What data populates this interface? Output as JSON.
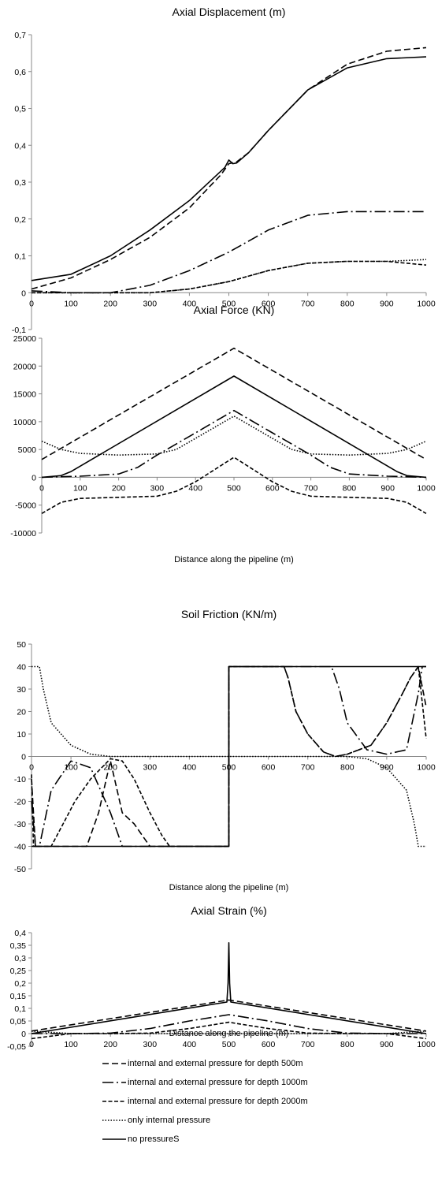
{
  "series_styles": [
    {
      "key": "d500",
      "label": "internal and external pressure for depth 500m",
      "dash": "8,4",
      "width": 1.6
    },
    {
      "key": "d1000",
      "label": "internal and external pressure for depth 1000m",
      "dash": "14,4,2,4",
      "width": 1.6
    },
    {
      "key": "d2000",
      "label": "internal and external pressure for depth 2000m",
      "dash": "5,2.5",
      "width": 1.6
    },
    {
      "key": "internal",
      "label": "only internal  pressure",
      "dash": "1.5,2",
      "width": 1.6
    },
    {
      "key": "none",
      "label": "no pressureS",
      "dash": "",
      "width": 1.6
    }
  ],
  "chart_data": [
    {
      "type": "line",
      "title": "Axial Displacement (m)",
      "xlabel": "",
      "ylabel": "",
      "xlim": [
        0,
        1000
      ],
      "ylim": [
        -0.1,
        0.7
      ],
      "yticks": [
        -0.1,
        0,
        0.1,
        0.2,
        0.3,
        0.4,
        0.5,
        0.6,
        0.7
      ],
      "ytick_labels": [
        "-0,1",
        "0",
        "0,1",
        "0,2",
        "0,3",
        "0,4",
        "0,5",
        "0,6",
        "0,7"
      ],
      "xticks": [
        0,
        100,
        200,
        300,
        400,
        500,
        600,
        700,
        800,
        900,
        1000
      ],
      "xtick_labels": [
        "0",
        "100",
        "200",
        "300",
        "400",
        "500",
        "600",
        "700",
        "800",
        "900",
        "1000"
      ],
      "grid": false,
      "series": [
        {
          "style": "d500",
          "x": [
            0,
            100,
            200,
            300,
            400,
            480,
            500,
            520,
            550,
            600,
            700,
            800,
            900,
            1000
          ],
          "y": [
            0.01,
            0.04,
            0.09,
            0.15,
            0.23,
            0.32,
            0.35,
            0.355,
            0.38,
            0.44,
            0.55,
            0.62,
            0.655,
            0.665
          ]
        },
        {
          "style": "d1000",
          "x": [
            0,
            100,
            200,
            300,
            400,
            500,
            550,
            600,
            700,
            800,
            900,
            1000
          ],
          "y": [
            0.005,
            0.0,
            0.0,
            0.02,
            0.06,
            0.11,
            0.14,
            0.17,
            0.21,
            0.22,
            0.22,
            0.22
          ]
        },
        {
          "style": "d2000",
          "x": [
            0,
            100,
            200,
            300,
            400,
            500,
            600,
            700,
            800,
            900,
            1000
          ],
          "y": [
            0.0,
            0.0,
            0.0,
            0.0,
            0.01,
            0.03,
            0.06,
            0.08,
            0.085,
            0.085,
            0.075
          ]
        },
        {
          "style": "internal",
          "x": [
            0,
            100,
            200,
            300,
            400,
            500,
            600,
            700,
            800,
            900,
            1000
          ],
          "y": [
            0.0,
            0.0,
            0.0,
            0.0,
            0.01,
            0.03,
            0.06,
            0.08,
            0.085,
            0.085,
            0.09
          ]
        },
        {
          "style": "none",
          "x": [
            0,
            100,
            200,
            300,
            400,
            490,
            500,
            510,
            520,
            550,
            600,
            700,
            800,
            900,
            1000
          ],
          "y": [
            0.033,
            0.05,
            0.1,
            0.17,
            0.25,
            0.34,
            0.36,
            0.35,
            0.352,
            0.38,
            0.44,
            0.55,
            0.61,
            0.635,
            0.64
          ]
        }
      ]
    },
    {
      "type": "line",
      "title": "Axial Force (KN)",
      "xlabel": "Distance along the pipeline (m)",
      "ylabel": "",
      "xlim": [
        0,
        1000
      ],
      "ylim": [
        -10000,
        25000
      ],
      "yticks": [
        -10000,
        -5000,
        0,
        5000,
        10000,
        15000,
        20000,
        25000
      ],
      "ytick_labels": [
        "-10000",
        "-5000",
        "0",
        "5000",
        "10000",
        "15000",
        "20000",
        "25000"
      ],
      "xticks": [
        0,
        100,
        200,
        300,
        400,
        500,
        600,
        700,
        800,
        900,
        1000
      ],
      "xtick_labels": [
        "0",
        "100",
        "200",
        "300",
        "400",
        "500",
        "600",
        "700",
        "800",
        "900",
        "1000"
      ],
      "grid": false,
      "series": [
        {
          "style": "d500",
          "x": [
            0,
            500,
            1000
          ],
          "y": [
            3200,
            23200,
            3200
          ]
        },
        {
          "style": "d1000",
          "x": [
            0,
            100,
            200,
            250,
            300,
            400,
            500,
            600,
            700,
            750,
            800,
            900,
            1000
          ],
          "y": [
            0,
            200,
            600,
            1800,
            4000,
            8000,
            12000,
            8000,
            4000,
            1800,
            600,
            200,
            0
          ]
        },
        {
          "style": "d2000",
          "x": [
            0,
            50,
            100,
            200,
            300,
            350,
            400,
            500,
            600,
            650,
            700,
            800,
            900,
            950,
            1000
          ],
          "y": [
            -6500,
            -4500,
            -3800,
            -3600,
            -3400,
            -2500,
            -800,
            3600,
            -800,
            -2500,
            -3400,
            -3600,
            -3800,
            -4500,
            -6500
          ]
        },
        {
          "style": "internal",
          "x": [
            0,
            50,
            100,
            200,
            300,
            350,
            400,
            500,
            600,
            650,
            700,
            800,
            900,
            950,
            1000
          ],
          "y": [
            6500,
            5000,
            4300,
            4000,
            4200,
            5000,
            7000,
            11000,
            7000,
            5000,
            4200,
            4000,
            4300,
            5000,
            6500
          ]
        },
        {
          "style": "none",
          "x": [
            0,
            50,
            75,
            500,
            925,
            950,
            1000
          ],
          "y": [
            0,
            300,
            1000,
            18200,
            1000,
            300,
            0
          ]
        }
      ]
    },
    {
      "type": "line",
      "title": "Soil Friction (KN/m)",
      "xlabel": "Distance along the pipeline (m)",
      "ylabel": "",
      "xlim": [
        0,
        1000
      ],
      "ylim": [
        -50,
        50
      ],
      "yticks": [
        -50,
        -40,
        -30,
        -20,
        -10,
        0,
        10,
        20,
        30,
        40,
        50
      ],
      "ytick_labels": [
        "-50",
        "-40",
        "-30",
        "-20",
        "-10",
        "0",
        "10",
        "20",
        "30",
        "40",
        "50"
      ],
      "xticks": [
        0,
        100,
        200,
        300,
        400,
        500,
        600,
        700,
        800,
        900,
        1000
      ],
      "xtick_labels": [
        "0",
        "100",
        "200",
        "300",
        "400",
        "500",
        "600",
        "700",
        "800",
        "900",
        "1000"
      ],
      "grid": false,
      "series": [
        {
          "style": "d500",
          "x": [
            0,
            10,
            50,
            100,
            140,
            170,
            200,
            230,
            260,
            300,
            330,
            350,
            360,
            500,
            500,
            640,
            650,
            670,
            700,
            740,
            770,
            800,
            860,
            900,
            940,
            960,
            980,
            1000
          ],
          "y": [
            -10,
            -40,
            -40,
            -40,
            -40,
            -25,
            -2,
            -25,
            -30,
            -40,
            -40,
            -40,
            -40,
            -40,
            40,
            40,
            35,
            20,
            10,
            2,
            0,
            1,
            5,
            15,
            28,
            35,
            40,
            22
          ]
        },
        {
          "style": "d1000",
          "x": [
            0,
            10,
            20,
            50,
            100,
            150,
            200,
            230,
            240,
            500,
            500,
            760,
            780,
            800,
            850,
            900,
            950,
            980,
            990,
            1000
          ],
          "y": [
            -20,
            -40,
            -40,
            -15,
            -2,
            -5,
            -25,
            -40,
            -40,
            -40,
            40,
            40,
            30,
            15,
            3,
            1,
            3,
            28,
            40,
            40
          ]
        },
        {
          "style": "d2000",
          "x": [
            0,
            5,
            15,
            25,
            50,
            80,
            110,
            150,
            200,
            230,
            260,
            300,
            330,
            350,
            360,
            500,
            500,
            640,
            650,
            670,
            700,
            740,
            770,
            800,
            860,
            900,
            940,
            960,
            980,
            1000
          ],
          "y": [
            -8,
            -40,
            -40,
            -40,
            -40,
            -30,
            -20,
            -10,
            -1,
            -2,
            -10,
            -25,
            -35,
            -40,
            -40,
            -40,
            40,
            40,
            35,
            20,
            10,
            2,
            0,
            1,
            5,
            15,
            28,
            35,
            40,
            8
          ]
        },
        {
          "style": "internal",
          "x": [
            0,
            20,
            30,
            50,
            100,
            150,
            200,
            250,
            300,
            400,
            500,
            600,
            700,
            800,
            850,
            900,
            950,
            970,
            980,
            1000
          ],
          "y": [
            40,
            40,
            30,
            15,
            5,
            1,
            0,
            0,
            0,
            0,
            0,
            0,
            0,
            0,
            -1,
            -5,
            -15,
            -30,
            -40,
            -40
          ]
        },
        {
          "style": "none",
          "x": [
            0,
            500,
            500,
            1000
          ],
          "y": [
            -40,
            -40,
            40,
            40
          ]
        }
      ]
    },
    {
      "type": "line",
      "title": "Axial Strain (%)",
      "xlabel": "Distance along the pipeline (m)",
      "ylabel": "",
      "xlim": [
        0,
        1000
      ],
      "ylim": [
        -0.05,
        0.4
      ],
      "yticks": [
        -0.05,
        0,
        0.05,
        0.1,
        0.15,
        0.2,
        0.25,
        0.3,
        0.35,
        0.4
      ],
      "ytick_labels": [
        "-0,05",
        "0",
        "0,05",
        "0,1",
        "0,15",
        "0,2",
        "0,25",
        "0,3",
        "0,35",
        "0,4"
      ],
      "xticks": [
        0,
        100,
        200,
        300,
        400,
        500,
        600,
        700,
        800,
        900,
        1000
      ],
      "xtick_labels": [
        "0",
        "100",
        "200",
        "300",
        "400",
        "500",
        "600",
        "700",
        "800",
        "900",
        "1000"
      ],
      "grid": false,
      "series": [
        {
          "style": "d500",
          "x": [
            0,
            500,
            1000
          ],
          "y": [
            0.01,
            0.133,
            0.01
          ]
        },
        {
          "style": "d1000",
          "x": [
            0,
            100,
            200,
            300,
            400,
            500,
            600,
            700,
            800,
            900,
            1000
          ],
          "y": [
            0.0,
            0.0,
            0.002,
            0.02,
            0.05,
            0.075,
            0.05,
            0.02,
            0.002,
            0.0,
            0.0
          ]
        },
        {
          "style": "d2000",
          "x": [
            0,
            50,
            100,
            200,
            300,
            400,
            500,
            600,
            700,
            800,
            900,
            950,
            1000
          ],
          "y": [
            -0.02,
            -0.01,
            0.0,
            0.0,
            0.002,
            0.02,
            0.045,
            0.02,
            0.002,
            0.0,
            0.0,
            -0.01,
            -0.02
          ]
        },
        {
          "style": "internal",
          "x": [
            0,
            100,
            200,
            300,
            400,
            500,
            600,
            700,
            800,
            900,
            1000
          ],
          "y": [
            0.01,
            0.0,
            0.0,
            0.0,
            0.0,
            0.0,
            0.0,
            0.0,
            0.0,
            0.0,
            0.01
          ]
        },
        {
          "style": "none",
          "x": [
            0,
            495,
            498,
            500,
            502,
            505,
            1000
          ],
          "y": [
            0.0,
            0.125,
            0.2,
            0.36,
            0.2,
            0.125,
            0.0
          ]
        }
      ]
    }
  ]
}
